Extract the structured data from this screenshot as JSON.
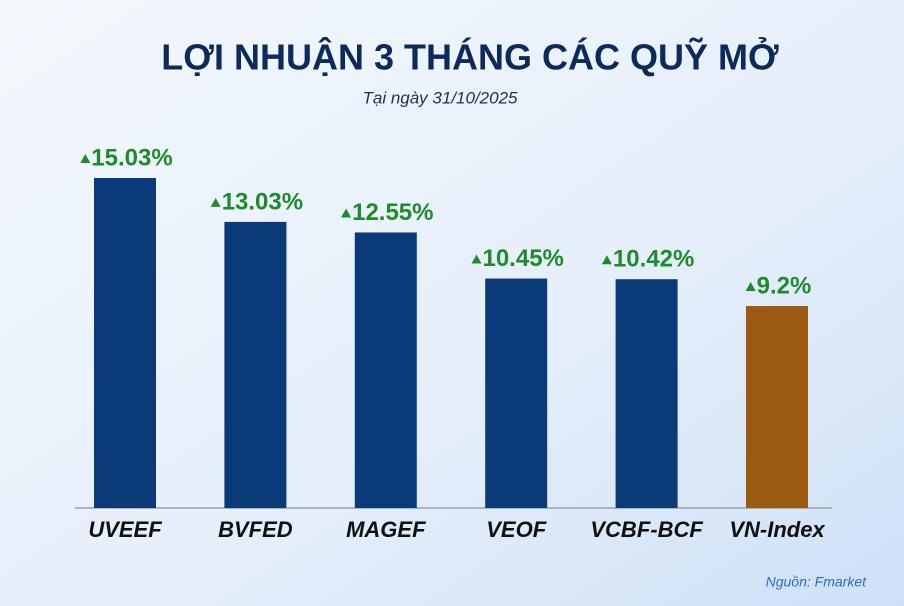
{
  "chart_data": {
    "type": "bar",
    "title": "LỢI NHUẬN 3 THÁNG CÁC QUỸ MỞ",
    "subtitle": "Tại ngày 31/10/2025",
    "categories": [
      "UVEEF",
      "BVFED",
      "MAGEF",
      "VEOF",
      "VCBF-BCF",
      "VN-Index"
    ],
    "values": [
      15.03,
      13.03,
      12.55,
      10.45,
      10.42,
      9.2
    ],
    "value_labels": [
      "15.03%",
      "13.03%",
      "12.55%",
      "10.45%",
      "10.42%",
      "9.2%"
    ],
    "colors": [
      "#0b3a78",
      "#0b3a78",
      "#0b3a78",
      "#0b3a78",
      "#0b3a78",
      "#9a5a12"
    ],
    "source": "Nguồn: Fmarket"
  }
}
